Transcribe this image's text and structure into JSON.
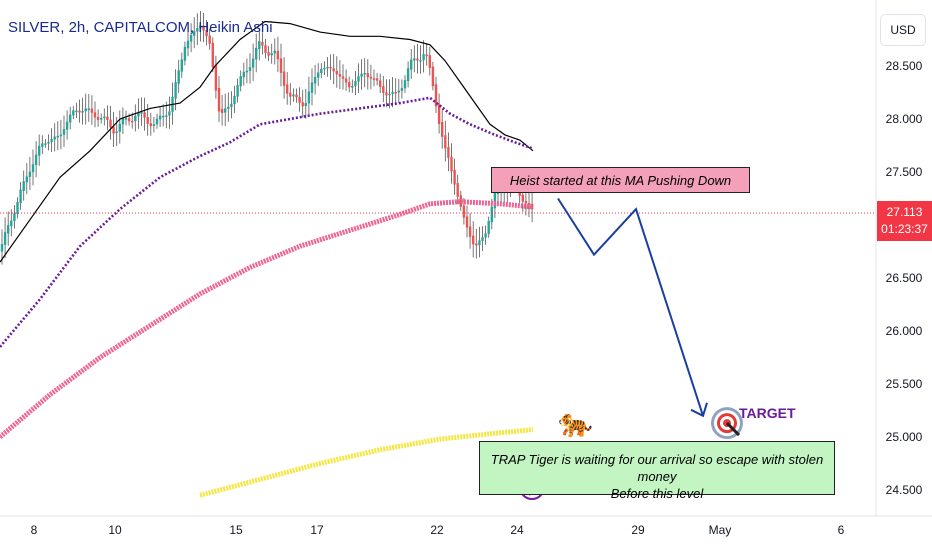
{
  "header": {
    "title": "SILVER, 2h, CAPITALCOM, Heikin Ashi",
    "currency": "USD"
  },
  "price_badge": {
    "price": "27.113",
    "countdown": "01:23:37",
    "color": "#f23645"
  },
  "annotations": {
    "heist_note": "Heist started at this MA Pushing Down",
    "trap_note_line1": "TRAP Tiger is waiting for our arrival so escape with stolen money",
    "trap_note_line2": "Before this level",
    "target_label": "TARGET",
    "tiger_emoji": "🐅",
    "lightning_icon": "⚡"
  },
  "colors": {
    "bull_candle": "#26a69a",
    "bear_candle": "#ef5350",
    "ma_black": "#000000",
    "ma_purple": "#6a1b9a",
    "ma_pink": "#f06292",
    "ma_yellow": "#f5e642",
    "projection": "#1a3fa0",
    "price_line": "#f23645"
  },
  "chart_data": {
    "type": "candlestick",
    "title": "SILVER, 2h, CAPITALCOM, Heikin Ashi",
    "y_axis": {
      "ticks": [
        "28.500",
        "28.000",
        "27.500",
        "27.000",
        "26.500",
        "26.000",
        "25.500",
        "25.000",
        "24.500"
      ],
      "range": [
        24.35,
        28.95
      ],
      "side": "right"
    },
    "x_axis": {
      "ticks": [
        "8",
        "10",
        "15",
        "17",
        "22",
        "24",
        "29",
        "May",
        "6"
      ]
    },
    "current_price": 27.113,
    "series": [
      {
        "name": "",
        "color": "#000000",
        "type": "ma"
      },
      {
        "name": "",
        "color": "#6a1b9a",
        "type": "ma"
      },
      {
        "name": "",
        "color": "#f06292",
        "type": "ma"
      },
      {
        "name": "",
        "color": "#f5e642",
        "type": "ma"
      }
    ],
    "projection_path_prices": [
      27.25,
      26.72,
      27.15,
      25.2
    ],
    "target_price": 25.15,
    "trap_level": 25.0
  }
}
